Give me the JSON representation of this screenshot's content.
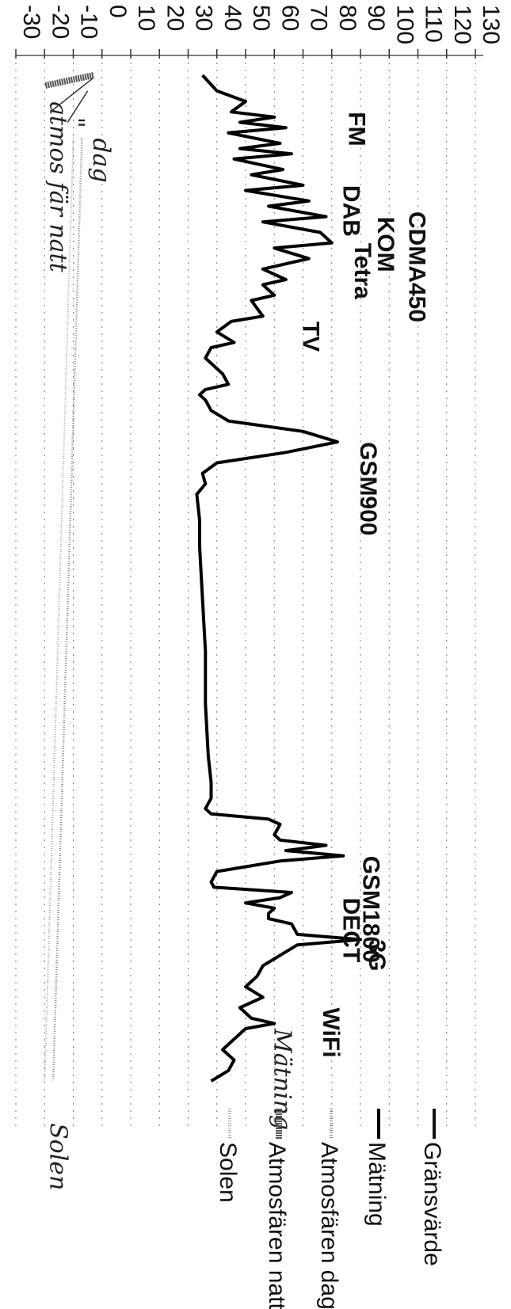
{
  "chart_data": {
    "type": "line",
    "ylim": [
      -30,
      130
    ],
    "y_ticks": [
      "-30",
      "-20",
      "-10",
      "0",
      "10",
      "20",
      "30",
      "40",
      "50",
      "60",
      "70",
      "80",
      "90",
      "100",
      "110",
      "120",
      "130"
    ],
    "grid": "dashed, vertical",
    "legend_position": "bottom",
    "series": [
      {
        "name": "Gränsvärde",
        "color": "#111111",
        "values": []
      },
      {
        "name": "Mätning",
        "color": "#000000",
        "values": [
          [
            0,
            35
          ],
          [
            3,
            40
          ],
          [
            5,
            50
          ],
          [
            7,
            45
          ],
          [
            8,
            60
          ],
          [
            9,
            48
          ],
          [
            10,
            64
          ],
          [
            11,
            44
          ],
          [
            13,
            62
          ],
          [
            14,
            48
          ],
          [
            15,
            66
          ],
          [
            16,
            46
          ],
          [
            18,
            63
          ],
          [
            19,
            52
          ],
          [
            21,
            70
          ],
          [
            22,
            50
          ],
          [
            24,
            72
          ],
          [
            25,
            58
          ],
          [
            27,
            78
          ],
          [
            28,
            56
          ],
          [
            30,
            76
          ],
          [
            32,
            80
          ],
          [
            33,
            60
          ],
          [
            35,
            72
          ],
          [
            37,
            56
          ],
          [
            39,
            64
          ],
          [
            40,
            56
          ],
          [
            42,
            60
          ],
          [
            43,
            52
          ],
          [
            46,
            56
          ],
          [
            47,
            45
          ],
          [
            49,
            40
          ],
          [
            51,
            46
          ],
          [
            52,
            38
          ],
          [
            54,
            36
          ],
          [
            57,
            42
          ],
          [
            59,
            44
          ],
          [
            60,
            36
          ],
          [
            61,
            34
          ],
          [
            62,
            36
          ],
          [
            64,
            38
          ],
          [
            66,
            44
          ],
          [
            68,
            70
          ],
          [
            70,
            82
          ],
          [
            72,
            64
          ],
          [
            74,
            40
          ],
          [
            76,
            35
          ],
          [
            78,
            36
          ],
          [
            80,
            33
          ],
          [
            85,
            34
          ],
          [
            90,
            34
          ],
          [
            100,
            35
          ],
          [
            110,
            36
          ],
          [
            120,
            36
          ],
          [
            130,
            37
          ],
          [
            135,
            38
          ],
          [
            138,
            38
          ],
          [
            140,
            36
          ],
          [
            141,
            38
          ],
          [
            142,
            58
          ],
          [
            143,
            62
          ],
          [
            145,
            60
          ],
          [
            146,
            62
          ],
          [
            147,
            78
          ],
          [
            148,
            64
          ],
          [
            149,
            84
          ],
          [
            150,
            62
          ],
          [
            152,
            40
          ],
          [
            154,
            38
          ],
          [
            155,
            39
          ],
          [
            156,
            66
          ],
          [
            157,
            62
          ],
          [
            158,
            50
          ],
          [
            159,
            60
          ],
          [
            160,
            58
          ],
          [
            161,
            58
          ],
          [
            162,
            66
          ],
          [
            164,
            68
          ],
          [
            165,
            90
          ],
          [
            166,
            68
          ],
          [
            168,
            62
          ],
          [
            170,
            56
          ],
          [
            172,
            54
          ],
          [
            174,
            50
          ],
          [
            176,
            56
          ],
          [
            178,
            48
          ],
          [
            180,
            52
          ],
          [
            181,
            60
          ],
          [
            182,
            50
          ],
          [
            184,
            46
          ],
          [
            186,
            42
          ],
          [
            188,
            46
          ],
          [
            190,
            44
          ],
          [
            192,
            38
          ]
        ]
      },
      {
        "name": "Atmosfären dag",
        "color": "#888888",
        "values": [
          [
            12,
            -7
          ],
          [
            192,
            -17
          ]
        ]
      },
      {
        "name": "Atmosfären natt",
        "color": "#555555",
        "values": [
          [
            0,
            -3
          ],
          [
            2,
            -20
          ]
        ]
      },
      {
        "name": "Solen",
        "color": "#aaaaaa",
        "values": [
          [
            12,
            -10
          ],
          [
            192,
            -20
          ]
        ]
      }
    ],
    "annotations": [
      {
        "text": "FM",
        "x": 7,
        "y": 86
      },
      {
        "text": "DAB",
        "x": 21,
        "y": 84
      },
      {
        "text": "KOM",
        "x": 27,
        "y": 96
      },
      {
        "text": "CDMA450",
        "x": 26,
        "y": 107
      },
      {
        "text": "Tetra",
        "x": 32,
        "y": 88
      },
      {
        "text": "TV",
        "x": 47,
        "y": 70
      },
      {
        "text": "GSM900",
        "x": 70,
        "y": 90
      },
      {
        "text": "GSM1800",
        "x": 149,
        "y": 91
      },
      {
        "text": "DECT",
        "x": 157,
        "y": 84
      },
      {
        "text": "3G",
        "x": 165,
        "y": 93
      },
      {
        "text": "WiFi",
        "x": 178,
        "y": 77
      },
      {
        "text": "Mätning",
        "x": 182,
        "y": 60,
        "style": "handwritten"
      },
      {
        "text": "atmos fär natt",
        "x": 5,
        "y": -18,
        "style": "handwritten"
      },
      {
        "text": "\"",
        "x": 8,
        "y": -12,
        "style": "handwritten"
      },
      {
        "text": "dag",
        "x": 12,
        "y": -3,
        "style": "handwritten"
      },
      {
        "text": "Solen",
        "x": 200,
        "y": -18,
        "style": "handwritten"
      }
    ]
  }
}
